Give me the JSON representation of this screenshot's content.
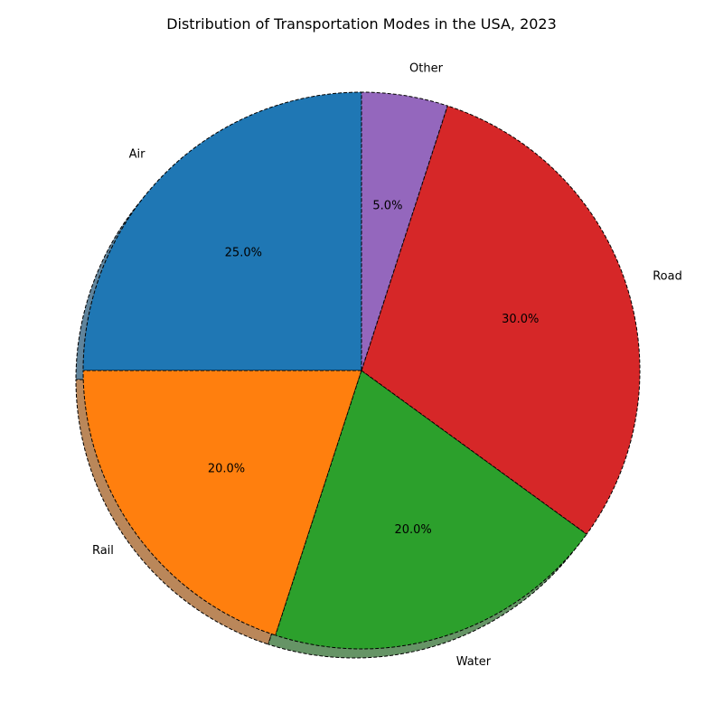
{
  "chart_data": {
    "type": "pie",
    "title": "Distribution of Transportation Modes in the USA, 2023",
    "slices": [
      {
        "label": "Air",
        "value": 25.0,
        "pct_label": "25.0%",
        "color": "#1f77b4"
      },
      {
        "label": "Rail",
        "value": 20.0,
        "pct_label": "20.0%",
        "color": "#ff7f0e"
      },
      {
        "label": "Water",
        "value": 20.0,
        "pct_label": "20.0%",
        "color": "#2ca02c"
      },
      {
        "label": "Road",
        "value": 30.0,
        "pct_label": "30.0%",
        "color": "#d62728"
      },
      {
        "label": "Other",
        "value": 5.0,
        "pct_label": "5.0%",
        "color": "#9467bd"
      }
    ],
    "start_angle_deg": 90,
    "direction": "counterclockwise",
    "shadow": true,
    "edge_style": "dashed",
    "legend": "none"
  }
}
